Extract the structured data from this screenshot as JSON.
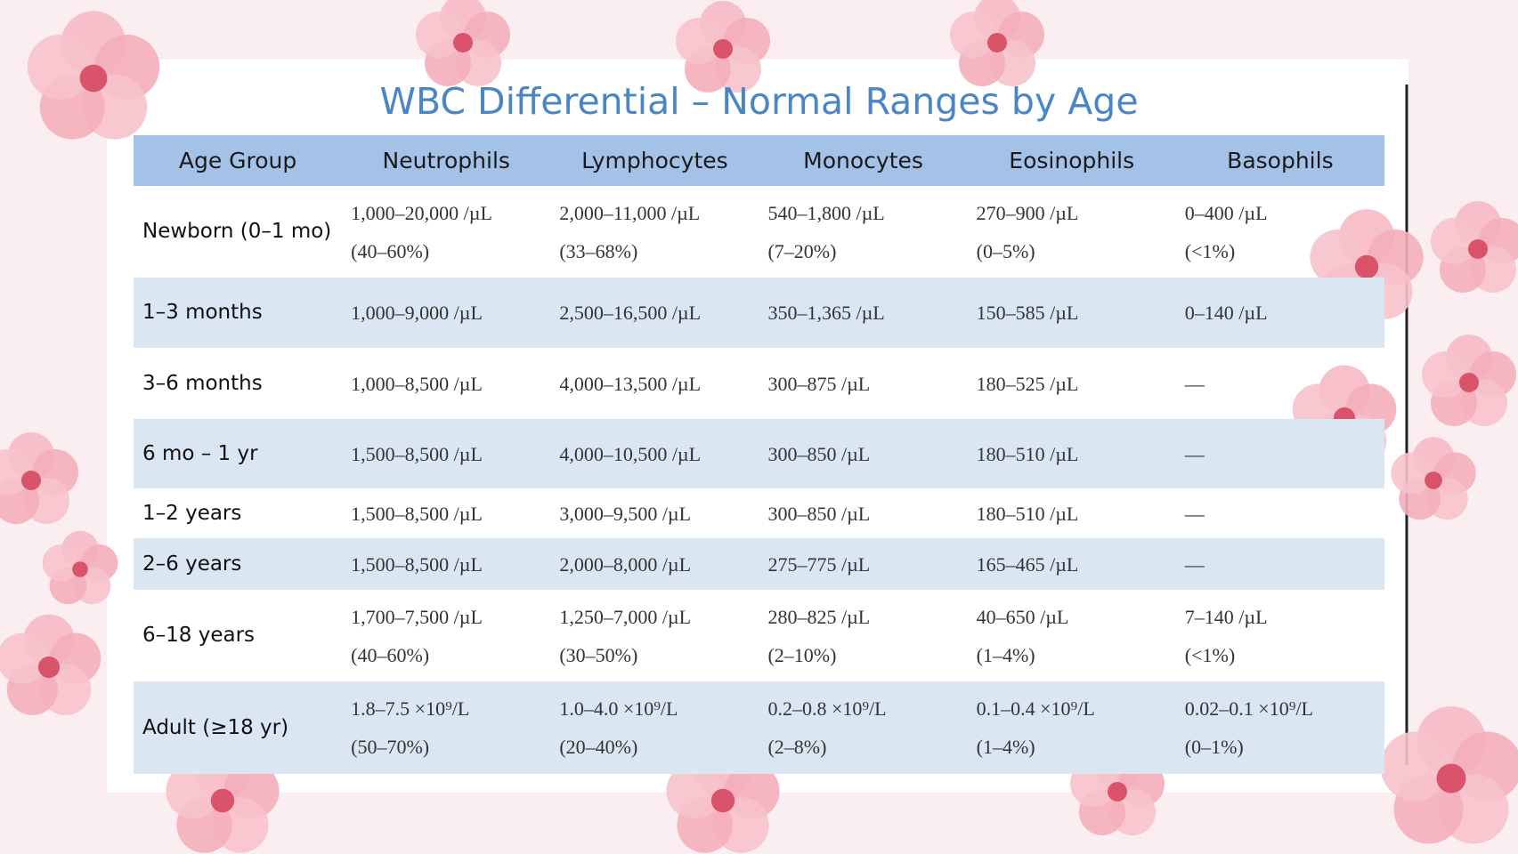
{
  "title": "WBC Differential – Normal Ranges by Age",
  "table": {
    "header": [
      "Age Group",
      "Neutrophils",
      "Lymphocytes",
      "Monocytes",
      "Eosinophils",
      "Basophils"
    ],
    "rows": [
      {
        "group": "Newborn (0–1 mo)",
        "cells": [
          [
            "1,000–20,000 /µL",
            "(40–60%)"
          ],
          [
            "2,000–11,000 /µL",
            "(33–68%)"
          ],
          [
            "540–1,800 /µL",
            "(7–20%)"
          ],
          [
            "270–900 /µL",
            "(0–5%)"
          ],
          [
            "0–400 /µL",
            "(<1%)"
          ]
        ]
      },
      {
        "group": "1–3 months",
        "cells": [
          [
            "1,000–9,000 /µL"
          ],
          [
            "2,500–16,500 /µL"
          ],
          [
            "350–1,365 /µL"
          ],
          [
            "150–585 /µL"
          ],
          [
            "0–140 /µL"
          ]
        ]
      },
      {
        "group": "3–6 months",
        "cells": [
          [
            "1,000–8,500 /µL"
          ],
          [
            "4,000–13,500 /µL"
          ],
          [
            "300–875 /µL"
          ],
          [
            "180–525 /µL"
          ],
          [
            "—"
          ]
        ]
      },
      {
        "group": "6 mo – 1 yr",
        "cells": [
          [
            "1,500–8,500 /µL"
          ],
          [
            "4,000–10,500 /µL"
          ],
          [
            "300–850 /µL"
          ],
          [
            "180–510 /µL"
          ],
          [
            "—"
          ]
        ]
      },
      {
        "group": "1–2 years",
        "cells": [
          [
            "1,500–8,500 /µL"
          ],
          [
            "3,000–9,500 /µL"
          ],
          [
            "300–850 /µL"
          ],
          [
            "180–510 /µL"
          ],
          [
            "—"
          ]
        ]
      },
      {
        "group": "2–6 years",
        "cells": [
          [
            "1,500–8,500 /µL"
          ],
          [
            "2,000–8,000 /µL"
          ],
          [
            "275–775 /µL"
          ],
          [
            "165–465 /µL"
          ],
          [
            "—"
          ]
        ]
      },
      {
        "group": "6–18 years",
        "cells": [
          [
            "1,700–7,500 /µL",
            "(40–60%)"
          ],
          [
            "1,250–7,000 /µL",
            "(30–50%)"
          ],
          [
            "280–825 /µL",
            "(2–10%)"
          ],
          [
            "40–650 /µL",
            "(1–4%)"
          ],
          [
            "7–140 /µL",
            "(<1%)"
          ]
        ]
      },
      {
        "group": "Adult (≥18 yr)",
        "cells": [
          [
            "1.8–7.5 ×10⁹/L",
            "(50–70%)"
          ],
          [
            "1.0–4.0 ×10⁹/L",
            "(20–40%)"
          ],
          [
            "0.2–0.8 ×10⁹/L",
            "(2–8%)"
          ],
          [
            "0.1–0.4 ×10⁹/L",
            "(1–4%)"
          ],
          [
            "0.02–0.1 ×10⁹/L",
            "(0–1%)"
          ]
        ]
      }
    ]
  }
}
